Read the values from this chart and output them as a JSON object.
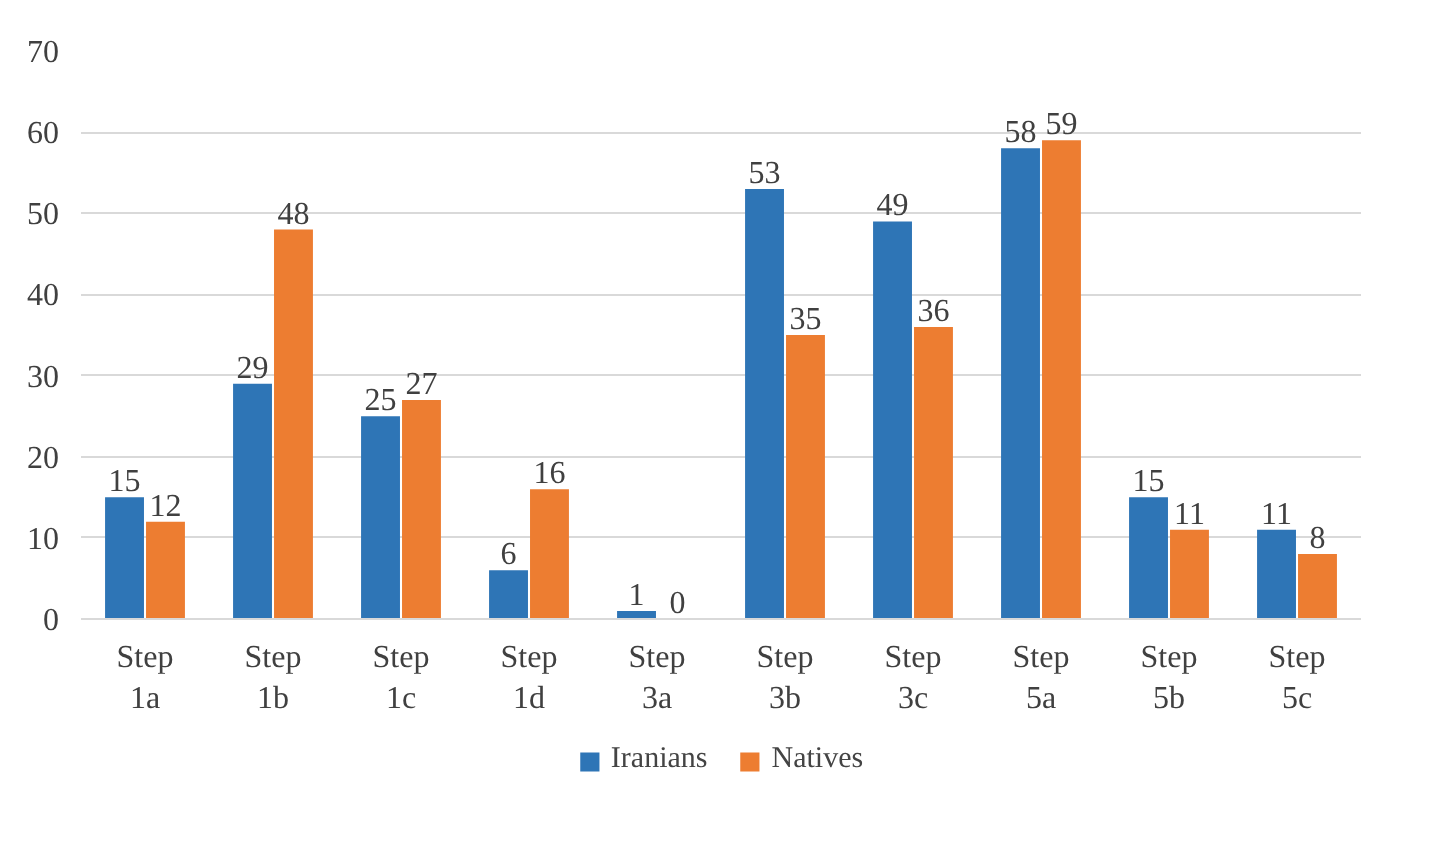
{
  "chart_data": {
    "type": "bar",
    "categories": [
      "Step 1a",
      "Step 1b",
      "Step 1c",
      "Step 1d",
      "Step 3a",
      "Step 3b",
      "Step 3c",
      "Step 5a",
      "Step 5b",
      "Step 5c"
    ],
    "series": [
      {
        "name": "Iranians",
        "color": "#2e75b6",
        "values": [
          15,
          29,
          25,
          6,
          1,
          53,
          49,
          58,
          15,
          11
        ]
      },
      {
        "name": "Natives",
        "color": "#ed7d31",
        "values": [
          12,
          48,
          27,
          16,
          0,
          35,
          36,
          59,
          11,
          8
        ]
      }
    ],
    "ylim": [
      0,
      70
    ],
    "yticks": [
      0,
      10,
      20,
      30,
      40,
      50,
      60,
      70
    ],
    "grid": "y",
    "legend": "bottom",
    "data_labels": true
  }
}
